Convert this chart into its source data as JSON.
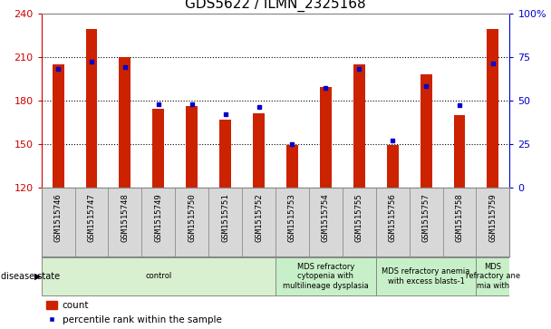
{
  "title": "GDS5622 / ILMN_2325168",
  "samples": [
    "GSM1515746",
    "GSM1515747",
    "GSM1515748",
    "GSM1515749",
    "GSM1515750",
    "GSM1515751",
    "GSM1515752",
    "GSM1515753",
    "GSM1515754",
    "GSM1515755",
    "GSM1515756",
    "GSM1515757",
    "GSM1515758",
    "GSM1515759"
  ],
  "counts": [
    205,
    229,
    210,
    174,
    176,
    167,
    171,
    149,
    189,
    205,
    149,
    198,
    170,
    229
  ],
  "percentile_ranks": [
    68,
    72,
    69,
    48,
    48,
    42,
    46,
    25,
    57,
    68,
    27,
    58,
    47,
    71
  ],
  "ylim_left": [
    120,
    240
  ],
  "ylim_right": [
    0,
    100
  ],
  "yticks_left": [
    120,
    150,
    180,
    210,
    240
  ],
  "yticks_right": [
    0,
    25,
    50,
    75,
    100
  ],
  "bar_color": "#cc2200",
  "percentile_color": "#0000cc",
  "bar_width": 0.35,
  "disease_groups": [
    {
      "label": "control",
      "start": 0,
      "end": 7,
      "color": "#d8f0d0"
    },
    {
      "label": "MDS refractory\ncytopenia with\nmultilineage dysplasia",
      "start": 7,
      "end": 10,
      "color": "#c8f0c8"
    },
    {
      "label": "MDS refractory anemia\nwith excess blasts-1",
      "start": 10,
      "end": 13,
      "color": "#c8f0c8"
    },
    {
      "label": "MDS\nrefractory ane\nmia with",
      "start": 13,
      "end": 14,
      "color": "#c8f0c8"
    }
  ],
  "title_fontsize": 11,
  "tick_label_color_left": "#cc0000",
  "tick_label_color_right": "#0000cc",
  "xtick_bg": "#d8d8d8",
  "percentile_scale_factor": 1.2
}
